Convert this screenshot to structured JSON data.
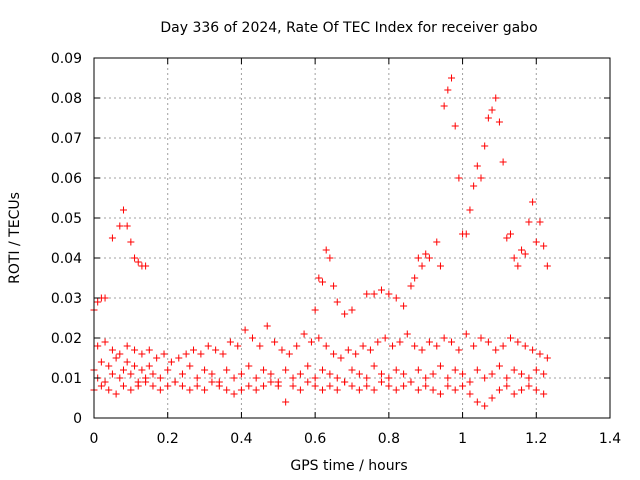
{
  "chart_data": {
    "type": "scatter",
    "title": "Day 336 of 2024, Rate Of TEC Index for receiver gabo",
    "xlabel": "GPS time / hours",
    "ylabel": "ROTI / TECUs",
    "xlim": [
      0,
      1.4
    ],
    "ylim": [
      0,
      0.09
    ],
    "xticks": [
      0,
      0.2,
      0.4,
      0.6,
      0.8,
      1,
      1.2,
      1.4
    ],
    "xtick_labels": [
      "0",
      "0.2",
      "0.4",
      "0.6",
      "0.8",
      "1",
      "1.2",
      "1.4"
    ],
    "yticks": [
      0,
      0.01,
      0.02,
      0.03,
      0.04,
      0.05,
      0.06,
      0.07,
      0.08,
      0.09
    ],
    "ytick_labels": [
      "0",
      "0.01",
      "0.02",
      "0.03",
      "0.04",
      "0.05",
      "0.06",
      "0.07",
      "0.08",
      "0.09"
    ],
    "grid": true,
    "marker": "+",
    "marker_color": "#ff0000",
    "series": [
      {
        "name": "ROTI",
        "x": [
          0.0,
          0.01,
          0.02,
          0.03,
          0.04,
          0.05,
          0.06,
          0.07,
          0.08,
          0.09,
          0.1,
          0.11,
          0.12,
          0.13,
          0.14,
          0.15,
          0.16,
          0.18,
          0.2,
          0.22,
          0.24,
          0.26,
          0.28,
          0.3,
          0.32,
          0.34,
          0.36,
          0.38,
          0.4,
          0.42,
          0.44,
          0.46,
          0.48,
          0.5,
          0.52,
          0.54,
          0.56,
          0.58,
          0.6,
          0.62,
          0.64,
          0.66,
          0.68,
          0.7,
          0.72,
          0.74,
          0.76,
          0.78,
          0.8,
          0.82,
          0.84,
          0.86,
          0.88,
          0.9,
          0.92,
          0.94,
          0.96,
          0.98,
          1.0,
          1.02,
          1.04,
          1.06,
          1.08,
          1.1,
          1.12,
          1.14,
          1.16,
          1.18,
          1.2,
          1.22,
          0.0,
          0.02,
          0.04,
          0.06,
          0.08,
          0.1,
          0.12,
          0.14,
          0.16,
          0.18,
          0.2,
          0.22,
          0.24,
          0.26,
          0.28,
          0.3,
          0.32,
          0.34,
          0.36,
          0.38,
          0.4,
          0.42,
          0.44,
          0.46,
          0.48,
          0.5,
          0.52,
          0.54,
          0.56,
          0.58,
          0.6,
          0.62,
          0.64,
          0.66,
          0.68,
          0.7,
          0.72,
          0.74,
          0.76,
          0.78,
          0.8,
          0.82,
          0.84,
          0.86,
          0.88,
          0.9,
          0.92,
          0.94,
          0.96,
          0.98,
          1.0,
          1.02,
          1.04,
          1.06,
          1.08,
          1.1,
          1.12,
          1.14,
          1.16,
          1.18,
          1.2,
          1.22,
          0.01,
          0.03,
          0.05,
          0.07,
          0.09,
          0.11,
          0.13,
          0.15,
          0.17,
          0.19,
          0.21,
          0.23,
          0.25,
          0.27,
          0.29,
          0.31,
          0.33,
          0.35,
          0.37,
          0.39,
          0.41,
          0.43,
          0.45,
          0.47,
          0.49,
          0.51,
          0.53,
          0.55,
          0.57,
          0.59,
          0.61,
          0.63,
          0.65,
          0.67,
          0.69,
          0.71,
          0.73,
          0.75,
          0.77,
          0.79,
          0.81,
          0.83,
          0.85,
          0.87,
          0.89,
          0.91,
          0.93,
          0.95,
          0.97,
          0.99,
          1.01,
          1.03,
          1.05,
          1.07,
          1.09,
          1.11,
          1.13,
          1.15,
          1.17,
          1.19,
          1.21,
          1.23,
          0.0,
          0.01,
          0.02,
          0.03,
          0.05,
          0.07,
          0.08,
          0.09,
          0.1,
          0.11,
          0.12,
          0.13,
          0.14,
          0.6,
          0.61,
          0.62,
          0.63,
          0.64,
          0.65,
          0.66,
          0.68,
          0.7,
          0.74,
          0.76,
          0.78,
          0.8,
          0.82,
          0.84,
          0.86,
          0.87,
          0.88,
          0.89,
          0.9,
          0.91,
          0.93,
          0.94,
          0.95,
          0.96,
          0.97,
          0.98,
          0.99,
          1.0,
          1.01,
          1.02,
          1.03,
          1.04,
          1.05,
          1.06,
          1.07,
          1.08,
          1.09,
          1.1,
          1.11,
          1.12,
          1.13,
          1.14,
          1.15,
          1.16,
          1.17,
          1.18,
          1.19,
          1.2,
          1.21,
          1.22,
          1.23
        ],
        "y": [
          0.012,
          0.01,
          0.014,
          0.009,
          0.013,
          0.011,
          0.015,
          0.01,
          0.012,
          0.014,
          0.011,
          0.013,
          0.009,
          0.012,
          0.01,
          0.013,
          0.011,
          0.01,
          0.012,
          0.009,
          0.011,
          0.013,
          0.01,
          0.012,
          0.011,
          0.009,
          0.012,
          0.01,
          0.011,
          0.013,
          0.01,
          0.012,
          0.011,
          0.009,
          0.012,
          0.01,
          0.011,
          0.013,
          0.01,
          0.012,
          0.011,
          0.01,
          0.009,
          0.012,
          0.011,
          0.01,
          0.013,
          0.011,
          0.01,
          0.012,
          0.011,
          0.009,
          0.012,
          0.01,
          0.011,
          0.013,
          0.01,
          0.012,
          0.011,
          0.009,
          0.012,
          0.01,
          0.011,
          0.013,
          0.01,
          0.012,
          0.011,
          0.01,
          0.012,
          0.011,
          0.007,
          0.008,
          0.007,
          0.006,
          0.008,
          0.007,
          0.008,
          0.009,
          0.008,
          0.007,
          0.008,
          0.009,
          0.008,
          0.007,
          0.008,
          0.007,
          0.009,
          0.008,
          0.007,
          0.006,
          0.007,
          0.008,
          0.007,
          0.008,
          0.009,
          0.008,
          0.004,
          0.008,
          0.007,
          0.009,
          0.008,
          0.007,
          0.008,
          0.007,
          0.009,
          0.008,
          0.007,
          0.008,
          0.007,
          0.009,
          0.008,
          0.007,
          0.008,
          0.009,
          0.007,
          0.008,
          0.007,
          0.006,
          0.008,
          0.007,
          0.008,
          0.006,
          0.004,
          0.003,
          0.005,
          0.007,
          0.008,
          0.006,
          0.007,
          0.008,
          0.007,
          0.006,
          0.018,
          0.019,
          0.017,
          0.016,
          0.018,
          0.017,
          0.016,
          0.017,
          0.015,
          0.016,
          0.014,
          0.015,
          0.016,
          0.017,
          0.016,
          0.018,
          0.017,
          0.016,
          0.019,
          0.018,
          0.022,
          0.02,
          0.018,
          0.023,
          0.019,
          0.017,
          0.016,
          0.018,
          0.021,
          0.019,
          0.02,
          0.018,
          0.016,
          0.015,
          0.017,
          0.016,
          0.018,
          0.017,
          0.019,
          0.02,
          0.018,
          0.019,
          0.021,
          0.018,
          0.017,
          0.019,
          0.018,
          0.02,
          0.019,
          0.017,
          0.021,
          0.018,
          0.02,
          0.019,
          0.017,
          0.018,
          0.02,
          0.019,
          0.018,
          0.017,
          0.016,
          0.015,
          0.027,
          0.029,
          0.03,
          0.03,
          0.045,
          0.048,
          0.052,
          0.048,
          0.044,
          0.04,
          0.039,
          0.038,
          0.038,
          0.027,
          0.035,
          0.034,
          0.042,
          0.04,
          0.033,
          0.029,
          0.026,
          0.027,
          0.031,
          0.031,
          0.032,
          0.031,
          0.03,
          0.028,
          0.033,
          0.035,
          0.04,
          0.038,
          0.041,
          0.04,
          0.044,
          0.038,
          0.078,
          0.082,
          0.085,
          0.073,
          0.06,
          0.046,
          0.046,
          0.052,
          0.058,
          0.063,
          0.06,
          0.068,
          0.075,
          0.077,
          0.08,
          0.074,
          0.064,
          0.045,
          0.046,
          0.04,
          0.038,
          0.042,
          0.041,
          0.049,
          0.054,
          0.044,
          0.049,
          0.043,
          0.038
        ]
      }
    ]
  }
}
